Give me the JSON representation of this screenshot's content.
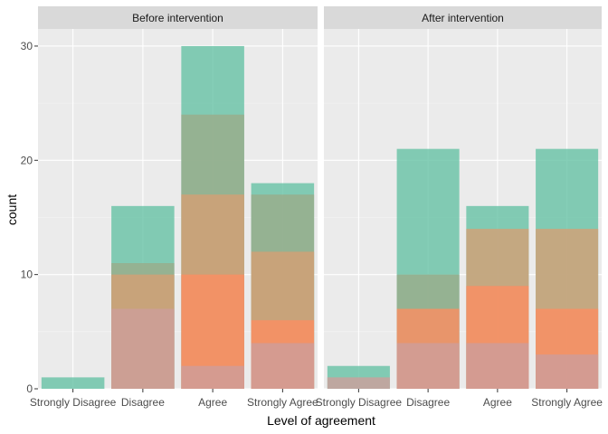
{
  "chart_data": {
    "type": "bar",
    "position": "identity",
    "xlabel": "Level of agreement",
    "ylabel": "count",
    "ylim": [
      0,
      31.5
    ],
    "yticks": [
      0,
      10,
      20,
      30
    ],
    "categories": [
      "Strongly Disagree",
      "Disagree",
      "Agree",
      "Strongly Agree"
    ],
    "legend": "none",
    "grid": true,
    "fill_alpha": 0.8,
    "series_colors": [
      "#66c2a5",
      "#9aab89",
      "#d59f74",
      "#fc8d62",
      "#cd9e9b"
    ],
    "panels": [
      {
        "title": "Before intervention",
        "categories": [
          "Strongly Disagree",
          "Disagree",
          "Agree",
          "Strongly Agree"
        ],
        "series": [
          {
            "values": [
              1,
              16,
              30,
              18
            ]
          },
          {
            "values": [
              null,
              11,
              24,
              17
            ]
          },
          {
            "values": [
              null,
              10,
              17,
              12
            ]
          },
          {
            "values": [
              null,
              null,
              10,
              6
            ]
          },
          {
            "values": [
              null,
              7,
              2,
              4
            ]
          }
        ]
      },
      {
        "title": "After intervention",
        "categories": [
          "Strongly Disagree",
          "Disagree",
          "Agree",
          "Strongly Agree"
        ],
        "series": [
          {
            "values": [
              2,
              21,
              16,
              21
            ]
          },
          {
            "values": [
              null,
              10,
              null,
              null
            ]
          },
          {
            "values": [
              null,
              null,
              14,
              14
            ]
          },
          {
            "values": [
              null,
              7,
              9,
              7
            ]
          },
          {
            "values": [
              1,
              4,
              4,
              3
            ]
          }
        ]
      }
    ]
  }
}
